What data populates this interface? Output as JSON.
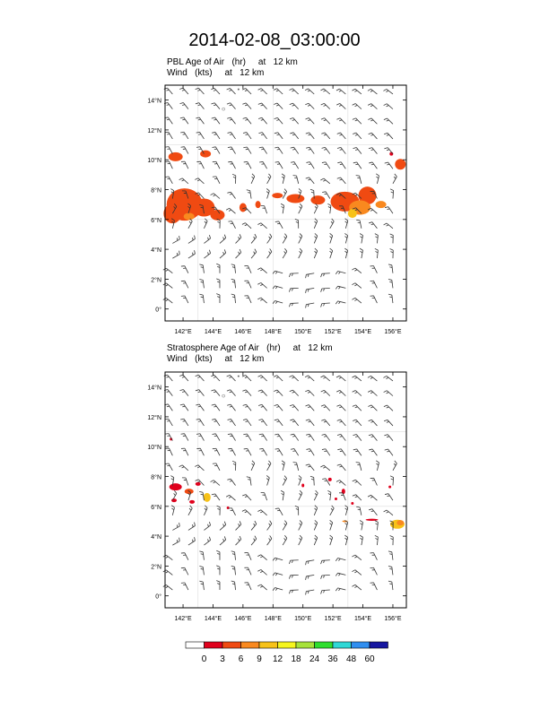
{
  "title": "2014-02-08_03:00:00",
  "panels": [
    {
      "line1": "PBL Age of Air   (hr)     at   12 km",
      "line2": "Wind   (kts)     at   12 km"
    },
    {
      "line1": "Stratosphere Age of Air   (hr)     at   12 km",
      "line2": "Wind   (kts)     at   12 km"
    }
  ],
  "lat_labels": [
    "14°N",
    "12°N",
    "10°N",
    "8°N",
    "6°N",
    "4°N",
    "2°N",
    "0°"
  ],
  "lon_labels": [
    "142°E",
    "144°E",
    "146°E",
    "148°E",
    "150°E",
    "152°E",
    "154°E",
    "156°E"
  ],
  "colorbar": {
    "labels": [
      "0",
      "3",
      "6",
      "9",
      "12",
      "18",
      "24",
      "36",
      "48",
      "60"
    ],
    "colors": [
      "#ffffff",
      "#e0001c",
      "#f04a12",
      "#f9891f",
      "#f7c218",
      "#f5f51e",
      "#a6e23a",
      "#2ede2e",
      "#2ed8d6",
      "#2f8ef0",
      "#1616a0"
    ]
  }
}
